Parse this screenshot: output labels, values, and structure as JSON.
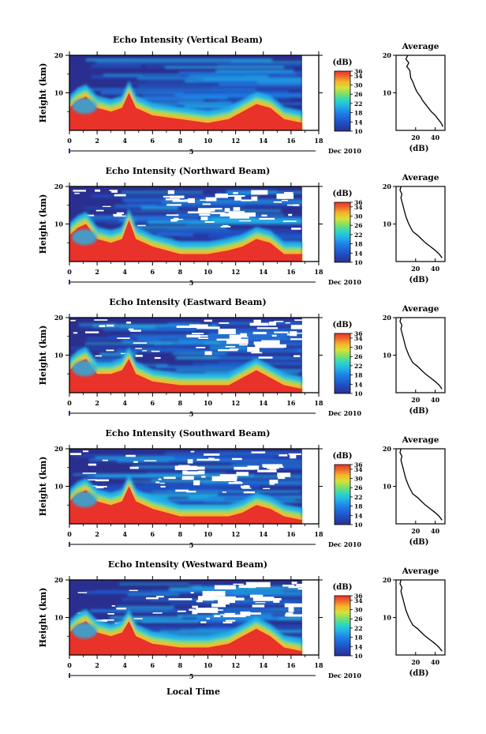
{
  "chart_data": [
    {
      "type": "heatmap",
      "title": "Echo Intensity (Vertical Beam)",
      "ylabel": "Height (km)",
      "colorbar_label": "(dB)",
      "colorbar_ticks": [
        "36",
        "34",
        "30",
        "26",
        "22",
        "18",
        "14",
        "10"
      ],
      "colorbar_range": [
        10,
        36
      ],
      "x_ticks": [
        "0",
        "2",
        "4",
        "6",
        "8",
        "10",
        "12",
        "14",
        "16",
        "18"
      ],
      "x_date_label": "Dec 2010",
      "x_sub_label": "5",
      "xlim": [
        0,
        18
      ],
      "ylim": [
        0,
        20
      ],
      "y_ticks": [
        "10",
        "20"
      ],
      "surface_profile": [
        [
          0,
          6
        ],
        [
          0.6,
          8
        ],
        [
          1.2,
          9
        ],
        [
          2,
          6
        ],
        [
          3,
          5
        ],
        [
          3.8,
          6
        ],
        [
          4.3,
          10
        ],
        [
          4.8,
          6
        ],
        [
          6,
          4
        ],
        [
          8,
          3
        ],
        [
          10,
          2
        ],
        [
          11.5,
          3
        ],
        [
          12.5,
          5
        ],
        [
          13.5,
          7
        ],
        [
          14.5,
          6
        ],
        [
          15.5,
          3
        ],
        [
          16.8,
          2
        ]
      ],
      "average_panel": {
        "title": "Average",
        "xlabel": "(dB)",
        "x_ticks": [
          "20",
          "40"
        ],
        "y_ticks": [
          "10",
          "20"
        ],
        "profile": [
          [
            12,
            20
          ],
          [
            10,
            19
          ],
          [
            13,
            18
          ],
          [
            11,
            17
          ],
          [
            14,
            16
          ],
          [
            15,
            14
          ],
          [
            17,
            13
          ],
          [
            20,
            11
          ],
          [
            22,
            10
          ],
          [
            25,
            9
          ],
          [
            27,
            8
          ],
          [
            30,
            7
          ],
          [
            33,
            6
          ],
          [
            36,
            5
          ],
          [
            40,
            4
          ],
          [
            43,
            3
          ],
          [
            46,
            2
          ],
          [
            48,
            1
          ]
        ]
      }
    },
    {
      "type": "heatmap",
      "title": "Echo Intensity (Northward Beam)",
      "ylabel": "Height (km)",
      "colorbar_label": "(dB)",
      "colorbar_ticks": [
        "36",
        "34",
        "30",
        "26",
        "22",
        "18",
        "14",
        "10"
      ],
      "colorbar_range": [
        10,
        36
      ],
      "x_ticks": [
        "0",
        "2",
        "4",
        "6",
        "8",
        "10",
        "12",
        "14",
        "16",
        "18"
      ],
      "x_date_label": "Dec 2010",
      "x_sub_label": "5",
      "xlim": [
        0,
        18
      ],
      "ylim": [
        0,
        20
      ],
      "y_ticks": [
        "10",
        "20"
      ],
      "surface_profile": [
        [
          0,
          7
        ],
        [
          0.6,
          9
        ],
        [
          1.2,
          10
        ],
        [
          2,
          6
        ],
        [
          3,
          5
        ],
        [
          3.8,
          6
        ],
        [
          4.3,
          11
        ],
        [
          4.8,
          6
        ],
        [
          6,
          4
        ],
        [
          8,
          2
        ],
        [
          10,
          2
        ],
        [
          11.5,
          3
        ],
        [
          12.5,
          4
        ],
        [
          13.5,
          6
        ],
        [
          14.5,
          5
        ],
        [
          15.5,
          2
        ],
        [
          16.8,
          2
        ]
      ],
      "average_panel": {
        "title": "Average",
        "xlabel": "(dB)",
        "x_ticks": [
          "20",
          "40"
        ],
        "y_ticks": [
          "10",
          "20"
        ],
        "profile": [
          [
            5,
            20
          ],
          [
            4,
            19
          ],
          [
            6,
            18
          ],
          [
            5,
            17
          ],
          [
            6,
            16
          ],
          [
            7,
            15
          ],
          [
            8,
            14
          ],
          [
            10,
            12
          ],
          [
            13,
            10
          ],
          [
            17,
            8
          ],
          [
            22,
            7
          ],
          [
            26,
            6
          ],
          [
            30,
            5
          ],
          [
            35,
            4
          ],
          [
            40,
            3
          ],
          [
            44,
            2
          ],
          [
            47,
            1
          ]
        ]
      }
    },
    {
      "type": "heatmap",
      "title": "Echo Intensity (Eastward Beam)",
      "ylabel": "Height (km)",
      "colorbar_label": "(dB)",
      "colorbar_ticks": [
        "36",
        "34",
        "30",
        "26",
        "22",
        "18",
        "14",
        "10"
      ],
      "colorbar_range": [
        10,
        36
      ],
      "x_ticks": [
        "0",
        "2",
        "4",
        "6",
        "8",
        "10",
        "12",
        "14",
        "16",
        "18"
      ],
      "x_date_label": "Dec 2010",
      "x_sub_label": "5",
      "xlim": [
        0,
        18
      ],
      "ylim": [
        0,
        20
      ],
      "y_ticks": [
        "10",
        "20"
      ],
      "surface_profile": [
        [
          0,
          6
        ],
        [
          0.6,
          8
        ],
        [
          1.2,
          9
        ],
        [
          2,
          5
        ],
        [
          3,
          5
        ],
        [
          3.8,
          6
        ],
        [
          4.3,
          9
        ],
        [
          4.8,
          5
        ],
        [
          6,
          3
        ],
        [
          8,
          2
        ],
        [
          10,
          2
        ],
        [
          11.5,
          2
        ],
        [
          12.5,
          4
        ],
        [
          13.5,
          6
        ],
        [
          14.5,
          4
        ],
        [
          15.5,
          2
        ],
        [
          16.8,
          1
        ]
      ],
      "average_panel": {
        "title": "Average",
        "xlabel": "(dB)",
        "x_ticks": [
          "20",
          "40"
        ],
        "y_ticks": [
          "10",
          "20"
        ],
        "profile": [
          [
            5,
            20
          ],
          [
            4,
            19
          ],
          [
            6,
            18
          ],
          [
            5,
            17
          ],
          [
            6,
            16
          ],
          [
            7,
            15
          ],
          [
            8,
            14
          ],
          [
            10,
            12
          ],
          [
            13,
            10
          ],
          [
            17,
            8
          ],
          [
            22,
            7
          ],
          [
            26,
            6
          ],
          [
            30,
            5
          ],
          [
            35,
            4
          ],
          [
            40,
            3
          ],
          [
            44,
            2
          ],
          [
            47,
            1
          ]
        ]
      }
    },
    {
      "type": "heatmap",
      "title": "Echo Intensity (Southward Beam)",
      "ylabel": "Height (km)",
      "colorbar_label": "(dB)",
      "colorbar_ticks": [
        "36",
        "34",
        "30",
        "26",
        "22",
        "18",
        "14",
        "10"
      ],
      "colorbar_range": [
        10,
        36
      ],
      "x_ticks": [
        "0",
        "2",
        "4",
        "6",
        "8",
        "10",
        "12",
        "14",
        "16",
        "18"
      ],
      "x_date_label": "Dec 2010",
      "x_sub_label": "5",
      "xlim": [
        0,
        18
      ],
      "ylim": [
        0,
        20
      ],
      "y_ticks": [
        "10",
        "20"
      ],
      "surface_profile": [
        [
          0,
          6
        ],
        [
          0.6,
          8
        ],
        [
          1.2,
          9
        ],
        [
          2,
          6
        ],
        [
          3,
          5
        ],
        [
          3.8,
          6
        ],
        [
          4.3,
          10
        ],
        [
          4.8,
          6
        ],
        [
          6,
          4
        ],
        [
          8,
          2
        ],
        [
          10,
          2
        ],
        [
          11.5,
          2
        ],
        [
          12.5,
          3
        ],
        [
          13.5,
          5
        ],
        [
          14.5,
          4
        ],
        [
          15.5,
          2
        ],
        [
          16.8,
          1
        ]
      ],
      "average_panel": {
        "title": "Average",
        "xlabel": "(dB)",
        "x_ticks": [
          "20",
          "40"
        ],
        "y_ticks": [
          "10",
          "20"
        ],
        "profile": [
          [
            5,
            20
          ],
          [
            4,
            19
          ],
          [
            6,
            18
          ],
          [
            5,
            17
          ],
          [
            6,
            16
          ],
          [
            7,
            15
          ],
          [
            8,
            14
          ],
          [
            10,
            12
          ],
          [
            13,
            10
          ],
          [
            17,
            8
          ],
          [
            22,
            7
          ],
          [
            26,
            6
          ],
          [
            30,
            5
          ],
          [
            35,
            4
          ],
          [
            40,
            3
          ],
          [
            44,
            2
          ],
          [
            47,
            1
          ]
        ]
      }
    },
    {
      "type": "heatmap",
      "title": "Echo Intensity (Westward Beam)",
      "ylabel": "Height (km)",
      "colorbar_label": "(dB)",
      "colorbar_ticks": [
        "36",
        "34",
        "30",
        "26",
        "22",
        "18",
        "14",
        "10"
      ],
      "colorbar_range": [
        10,
        36
      ],
      "x_ticks": [
        "0",
        "2",
        "4",
        "6",
        "8",
        "10",
        "12",
        "14",
        "16",
        "18"
      ],
      "x_date_label": "Dec 2010",
      "x_sub_label": "5",
      "xlim": [
        0,
        18
      ],
      "ylim": [
        0,
        20
      ],
      "y_ticks": [
        "10",
        "20"
      ],
      "surface_profile": [
        [
          0,
          6
        ],
        [
          0.6,
          8
        ],
        [
          1.2,
          9
        ],
        [
          2,
          6
        ],
        [
          3,
          5
        ],
        [
          3.8,
          6
        ],
        [
          4.3,
          9
        ],
        [
          4.8,
          5
        ],
        [
          6,
          3
        ],
        [
          8,
          2
        ],
        [
          10,
          2
        ],
        [
          11.5,
          3
        ],
        [
          12.5,
          5
        ],
        [
          13.5,
          7
        ],
        [
          14.5,
          5
        ],
        [
          15.5,
          2
        ],
        [
          16.8,
          1
        ]
      ],
      "average_panel": {
        "title": "Average",
        "xlabel": "(dB)",
        "x_ticks": [
          "20",
          "40"
        ],
        "y_ticks": [
          "10",
          "20"
        ],
        "profile": [
          [
            5,
            20
          ],
          [
            4,
            19
          ],
          [
            6,
            18
          ],
          [
            5,
            17
          ],
          [
            6,
            16
          ],
          [
            7,
            15
          ],
          [
            8,
            14
          ],
          [
            10,
            12
          ],
          [
            13,
            10
          ],
          [
            17,
            8
          ],
          [
            22,
            7
          ],
          [
            26,
            6
          ],
          [
            30,
            5
          ],
          [
            35,
            4
          ],
          [
            40,
            3
          ],
          [
            44,
            2
          ],
          [
            47,
            1
          ]
        ]
      }
    }
  ],
  "figure": {
    "xlabel": "Local Time"
  },
  "colors": {
    "colormap": [
      "#2a2f8f",
      "#1f52c8",
      "#1e7fe6",
      "#22b4e8",
      "#2fd8c0",
      "#7ae06a",
      "#d4e23a",
      "#f5b62a",
      "#f0642a",
      "#e8322a"
    ],
    "surface": "#e8322a",
    "background": "#ffffff"
  }
}
